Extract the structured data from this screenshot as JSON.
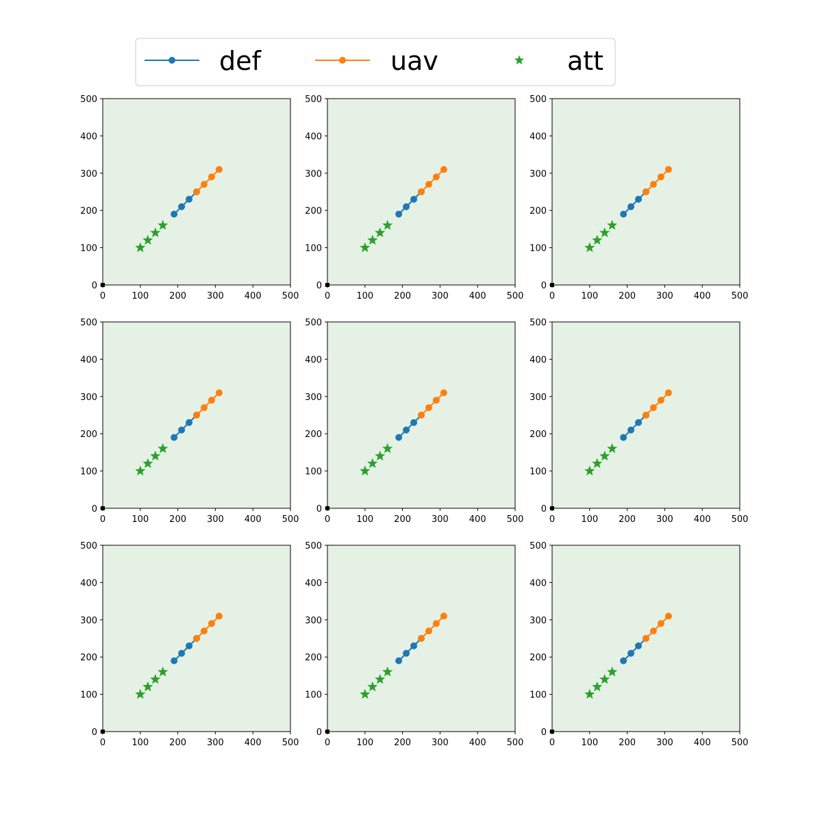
{
  "legend": {
    "placement": "top-center",
    "items": [
      {
        "label": "def",
        "color": "#1f77b4",
        "marker": "circle",
        "line": true
      },
      {
        "label": "uav",
        "color": "#ff7f0e",
        "marker": "circle",
        "line": true
      },
      {
        "label": "att",
        "color": "#2ca02c",
        "marker": "star",
        "line": false
      }
    ]
  },
  "colors": {
    "axes_background": "#e5f1e5",
    "origin_marker": "#000000"
  },
  "chart_data": {
    "type": "scatter",
    "layout": {
      "rows": 3,
      "cols": 3
    },
    "xlim": [
      0,
      500
    ],
    "ylim": [
      0,
      500
    ],
    "xticks": [
      0,
      100,
      200,
      300,
      400,
      500
    ],
    "yticks": [
      0,
      100,
      200,
      300,
      400,
      500
    ],
    "grid": false,
    "panels": [
      {
        "series": [
          {
            "name": "def",
            "color": "#1f77b4",
            "marker": "circle",
            "line": true,
            "points": [
              [
                190,
                190
              ],
              [
                210,
                210
              ],
              [
                230,
                230
              ],
              [
                250,
                250
              ]
            ]
          },
          {
            "name": "uav",
            "color": "#ff7f0e",
            "marker": "circle",
            "line": true,
            "points": [
              [
                250,
                250
              ],
              [
                270,
                270
              ],
              [
                290,
                290
              ],
              [
                310,
                310
              ]
            ]
          },
          {
            "name": "att",
            "color": "#2ca02c",
            "marker": "star",
            "line": false,
            "points": [
              [
                100,
                100
              ],
              [
                120,
                120
              ],
              [
                140,
                140
              ],
              [
                160,
                160
              ]
            ]
          }
        ],
        "origin_point": [
          0,
          0
        ]
      },
      {
        "series": [
          {
            "name": "def",
            "color": "#1f77b4",
            "marker": "circle",
            "line": true,
            "points": [
              [
                190,
                190
              ],
              [
                210,
                210
              ],
              [
                230,
                230
              ],
              [
                250,
                250
              ]
            ]
          },
          {
            "name": "uav",
            "color": "#ff7f0e",
            "marker": "circle",
            "line": true,
            "points": [
              [
                250,
                250
              ],
              [
                270,
                270
              ],
              [
                290,
                290
              ],
              [
                310,
                310
              ]
            ]
          },
          {
            "name": "att",
            "color": "#2ca02c",
            "marker": "star",
            "line": false,
            "points": [
              [
                100,
                100
              ],
              [
                120,
                120
              ],
              [
                140,
                140
              ],
              [
                160,
                160
              ]
            ]
          }
        ],
        "origin_point": [
          0,
          0
        ]
      },
      {
        "series": [
          {
            "name": "def",
            "color": "#1f77b4",
            "marker": "circle",
            "line": true,
            "points": [
              [
                190,
                190
              ],
              [
                210,
                210
              ],
              [
                230,
                230
              ],
              [
                250,
                250
              ]
            ]
          },
          {
            "name": "uav",
            "color": "#ff7f0e",
            "marker": "circle",
            "line": true,
            "points": [
              [
                250,
                250
              ],
              [
                270,
                270
              ],
              [
                290,
                290
              ],
              [
                310,
                310
              ]
            ]
          },
          {
            "name": "att",
            "color": "#2ca02c",
            "marker": "star",
            "line": false,
            "points": [
              [
                100,
                100
              ],
              [
                120,
                120
              ],
              [
                140,
                140
              ],
              [
                160,
                160
              ]
            ]
          }
        ],
        "origin_point": [
          0,
          0
        ]
      },
      {
        "series": [
          {
            "name": "def",
            "color": "#1f77b4",
            "marker": "circle",
            "line": true,
            "points": [
              [
                190,
                190
              ],
              [
                210,
                210
              ],
              [
                230,
                230
              ],
              [
                250,
                250
              ]
            ]
          },
          {
            "name": "uav",
            "color": "#ff7f0e",
            "marker": "circle",
            "line": true,
            "points": [
              [
                250,
                250
              ],
              [
                270,
                270
              ],
              [
                290,
                290
              ],
              [
                310,
                310
              ]
            ]
          },
          {
            "name": "att",
            "color": "#2ca02c",
            "marker": "star",
            "line": false,
            "points": [
              [
                100,
                100
              ],
              [
                120,
                120
              ],
              [
                140,
                140
              ],
              [
                160,
                160
              ]
            ]
          }
        ],
        "origin_point": [
          0,
          0
        ]
      },
      {
        "series": [
          {
            "name": "def",
            "color": "#1f77b4",
            "marker": "circle",
            "line": true,
            "points": [
              [
                190,
                190
              ],
              [
                210,
                210
              ],
              [
                230,
                230
              ],
              [
                250,
                250
              ]
            ]
          },
          {
            "name": "uav",
            "color": "#ff7f0e",
            "marker": "circle",
            "line": true,
            "points": [
              [
                250,
                250
              ],
              [
                270,
                270
              ],
              [
                290,
                290
              ],
              [
                310,
                310
              ]
            ]
          },
          {
            "name": "att",
            "color": "#2ca02c",
            "marker": "star",
            "line": false,
            "points": [
              [
                100,
                100
              ],
              [
                120,
                120
              ],
              [
                140,
                140
              ],
              [
                160,
                160
              ]
            ]
          }
        ],
        "origin_point": [
          0,
          0
        ]
      },
      {
        "series": [
          {
            "name": "def",
            "color": "#1f77b4",
            "marker": "circle",
            "line": true,
            "points": [
              [
                190,
                190
              ],
              [
                210,
                210
              ],
              [
                230,
                230
              ],
              [
                250,
                250
              ]
            ]
          },
          {
            "name": "uav",
            "color": "#ff7f0e",
            "marker": "circle",
            "line": true,
            "points": [
              [
                250,
                250
              ],
              [
                270,
                270
              ],
              [
                290,
                290
              ],
              [
                310,
                310
              ]
            ]
          },
          {
            "name": "att",
            "color": "#2ca02c",
            "marker": "star",
            "line": false,
            "points": [
              [
                100,
                100
              ],
              [
                120,
                120
              ],
              [
                140,
                140
              ],
              [
                160,
                160
              ]
            ]
          }
        ],
        "origin_point": [
          0,
          0
        ]
      },
      {
        "series": [
          {
            "name": "def",
            "color": "#1f77b4",
            "marker": "circle",
            "line": true,
            "points": [
              [
                190,
                190
              ],
              [
                210,
                210
              ],
              [
                230,
                230
              ],
              [
                250,
                250
              ]
            ]
          },
          {
            "name": "uav",
            "color": "#ff7f0e",
            "marker": "circle",
            "line": true,
            "points": [
              [
                250,
                250
              ],
              [
                270,
                270
              ],
              [
                290,
                290
              ],
              [
                310,
                310
              ]
            ]
          },
          {
            "name": "att",
            "color": "#2ca02c",
            "marker": "star",
            "line": false,
            "points": [
              [
                100,
                100
              ],
              [
                120,
                120
              ],
              [
                140,
                140
              ],
              [
                160,
                160
              ]
            ]
          }
        ],
        "origin_point": [
          0,
          0
        ]
      },
      {
        "series": [
          {
            "name": "def",
            "color": "#1f77b4",
            "marker": "circle",
            "line": true,
            "points": [
              [
                190,
                190
              ],
              [
                210,
                210
              ],
              [
                230,
                230
              ],
              [
                250,
                250
              ]
            ]
          },
          {
            "name": "uav",
            "color": "#ff7f0e",
            "marker": "circle",
            "line": true,
            "points": [
              [
                250,
                250
              ],
              [
                270,
                270
              ],
              [
                290,
                290
              ],
              [
                310,
                310
              ]
            ]
          },
          {
            "name": "att",
            "color": "#2ca02c",
            "marker": "star",
            "line": false,
            "points": [
              [
                100,
                100
              ],
              [
                120,
                120
              ],
              [
                140,
                140
              ],
              [
                160,
                160
              ]
            ]
          }
        ],
        "origin_point": [
          0,
          0
        ]
      },
      {
        "series": [
          {
            "name": "def",
            "color": "#1f77b4",
            "marker": "circle",
            "line": true,
            "points": [
              [
                190,
                190
              ],
              [
                210,
                210
              ],
              [
                230,
                230
              ],
              [
                250,
                250
              ]
            ]
          },
          {
            "name": "uav",
            "color": "#ff7f0e",
            "marker": "circle",
            "line": true,
            "points": [
              [
                250,
                250
              ],
              [
                270,
                270
              ],
              [
                290,
                290
              ],
              [
                310,
                310
              ]
            ]
          },
          {
            "name": "att",
            "color": "#2ca02c",
            "marker": "star",
            "line": false,
            "points": [
              [
                100,
                100
              ],
              [
                120,
                120
              ],
              [
                140,
                140
              ],
              [
                160,
                160
              ]
            ]
          }
        ],
        "origin_point": [
          0,
          0
        ]
      }
    ]
  }
}
